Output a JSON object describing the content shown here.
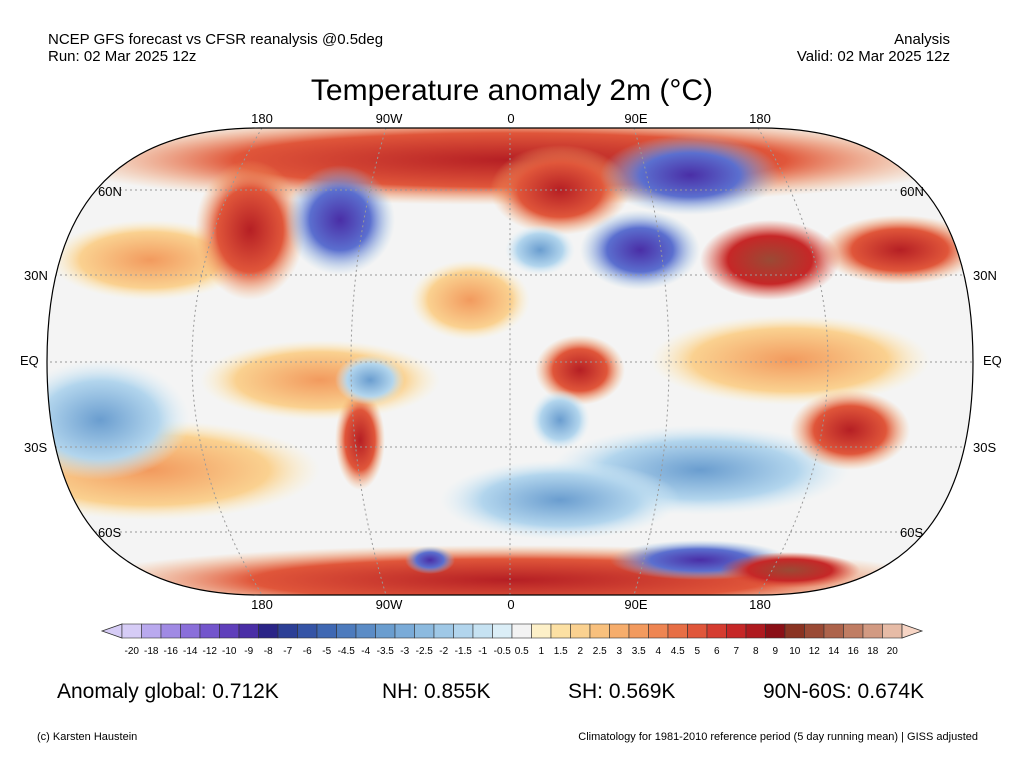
{
  "header": {
    "left_line1": "NCEP GFS forecast vs CFSR reanalysis @0.5deg",
    "left_line2": "Run: 02 Mar 2025 12z",
    "right_line1": "Analysis",
    "right_line2": "Valid: 02 Mar 2025 12z"
  },
  "title": "Temperature anomaly 2m (°C)",
  "map": {
    "projection": "Robinson",
    "lon_labels": [
      "180",
      "90W",
      "0",
      "90E",
      "180"
    ],
    "lat_labels": [
      "60N",
      "30N",
      "EQ",
      "30S",
      "60S"
    ],
    "colors": {
      "ocean_neutral": "#f4f4f4",
      "cold": "#4a3aa8",
      "cool": "#6fa8d6",
      "warm": "#f2a36a",
      "hot": "#c8242a"
    }
  },
  "colorbar": {
    "labels": [
      "-20",
      "-18",
      "-16",
      "-14",
      "-12",
      "-10",
      "-9",
      "-8",
      "-7",
      "-6",
      "-5",
      "-4.5",
      "-4",
      "-3.5",
      "-3",
      "-2.5",
      "-2",
      "-1.5",
      "-1",
      "-0.5",
      "0.5",
      "1",
      "1.5",
      "2",
      "2.5",
      "3",
      "3.5",
      "4",
      "4.5",
      "5",
      "6",
      "7",
      "8",
      "9",
      "10",
      "12",
      "14",
      "16",
      "18",
      "20"
    ],
    "colors": [
      "#d6ccf6",
      "#b9a9ee",
      "#a08ae4",
      "#8a6fda",
      "#7355cc",
      "#5f3fbb",
      "#4a2ea6",
      "#2a2487",
      "#2c3f96",
      "#3554a6",
      "#3f68b3",
      "#4d7bbd",
      "#5b8cc6",
      "#6a9dcf",
      "#7aabd8",
      "#8cbadf",
      "#9fc8e6",
      "#b2d5ed",
      "#c6e2f2",
      "#dbeef7",
      "#f3f3f3",
      "#fdf0c8",
      "#fce0a3",
      "#fad190",
      "#f8c07d",
      "#f6ad6c",
      "#f29a5e",
      "#ee8552",
      "#e76e45",
      "#e0563a",
      "#d53c30",
      "#c62727",
      "#af1a1f",
      "#8a0f16",
      "#8a3322",
      "#9a4a35",
      "#ad634b",
      "#c07d63",
      "#d29a82",
      "#e6bba6"
    ],
    "end_low": "#d6ccf6",
    "end_high": "#f7d5c5"
  },
  "stats": {
    "global": "Anomaly global: 0.712K",
    "nh": "NH: 0.855K",
    "sh": "SH: 0.569K",
    "arctic": "90N-60S: 0.674K"
  },
  "footer": {
    "credit": "(c) Karsten Haustein",
    "note": "Climatology for 1981-2010 reference period (5 day running mean) | GISS adjusted"
  }
}
